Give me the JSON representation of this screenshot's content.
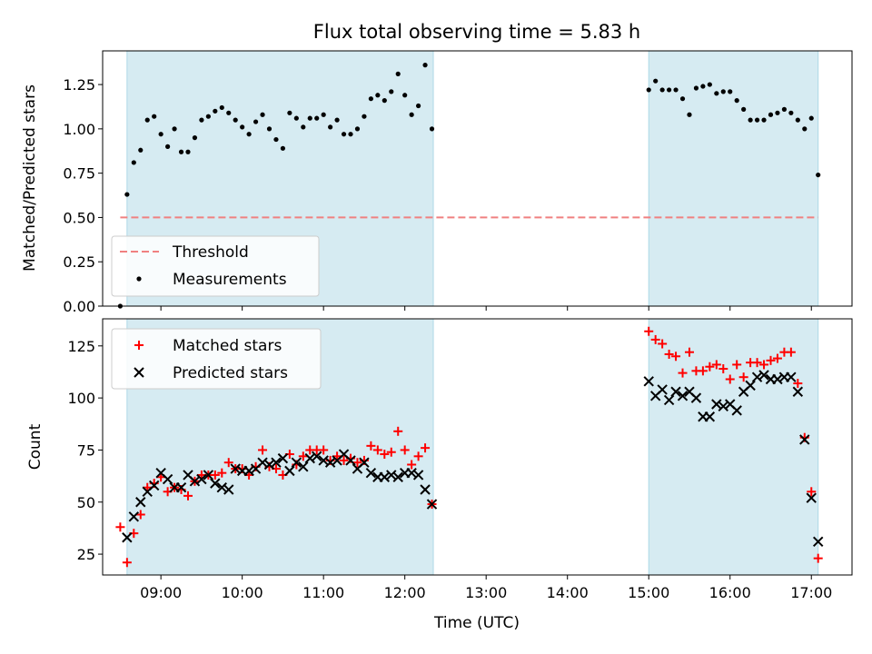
{
  "figure": {
    "title": "Flux total observing time = 5.83 h",
    "xlabel": "Time (UTC)"
  },
  "chart_data": [
    {
      "type": "scatter",
      "panel": "top",
      "ylabel": "Matched/Predicted stars",
      "xlim": [
        "08:17",
        "17:30"
      ],
      "ylim": [
        0,
        1.44
      ],
      "yticks": [
        0.0,
        0.25,
        0.5,
        0.75,
        1.0,
        1.25
      ],
      "ytick_labels": [
        "0.00",
        "0.25",
        "0.50",
        "0.75",
        "1.00",
        "1.25"
      ],
      "shaded_spans": [
        [
          "08:35",
          "12:21"
        ],
        [
          "15:00",
          "17:05"
        ]
      ],
      "threshold": {
        "name": "Threshold",
        "y": 0.5,
        "x_start": "08:30",
        "x_end": "17:05",
        "color": "#f08080",
        "style": "dashed"
      },
      "series": [
        {
          "name": "Measurements",
          "marker": "dot",
          "color": "#000000",
          "x": [
            "08:30",
            "08:35",
            "08:40",
            "08:45",
            "08:50",
            "08:55",
            "09:00",
            "09:05",
            "09:10",
            "09:15",
            "09:20",
            "09:25",
            "09:30",
            "09:35",
            "09:40",
            "09:45",
            "09:50",
            "09:55",
            "10:00",
            "10:05",
            "10:10",
            "10:15",
            "10:20",
            "10:25",
            "10:30",
            "10:35",
            "10:40",
            "10:45",
            "10:50",
            "10:55",
            "11:00",
            "11:05",
            "11:10",
            "11:15",
            "11:20",
            "11:25",
            "11:30",
            "11:35",
            "11:40",
            "11:45",
            "11:50",
            "11:55",
            "12:00",
            "12:05",
            "12:10",
            "12:15",
            "12:20",
            "15:00",
            "15:05",
            "15:10",
            "15:15",
            "15:20",
            "15:25",
            "15:30",
            "15:35",
            "15:40",
            "15:45",
            "15:50",
            "15:55",
            "16:00",
            "16:05",
            "16:10",
            "16:15",
            "16:20",
            "16:25",
            "16:30",
            "16:35",
            "16:40",
            "16:45",
            "16:50",
            "16:55",
            "17:00",
            "17:05"
          ],
          "y": [
            0.0,
            0.63,
            0.81,
            0.88,
            1.05,
            1.07,
            0.97,
            0.9,
            1.0,
            0.87,
            0.87,
            0.95,
            1.05,
            1.07,
            1.1,
            1.12,
            1.09,
            1.05,
            1.01,
            0.97,
            1.04,
            1.08,
            1.0,
            0.94,
            0.89,
            1.09,
            1.06,
            1.01,
            1.06,
            1.06,
            1.08,
            1.01,
            1.05,
            0.97,
            0.97,
            1.0,
            1.07,
            1.17,
            1.19,
            1.16,
            1.21,
            1.31,
            1.19,
            1.08,
            1.13,
            1.36,
            1.0,
            1.22,
            1.27,
            1.22,
            1.22,
            1.22,
            1.17,
            1.08,
            1.23,
            1.24,
            1.25,
            1.2,
            1.21,
            1.21,
            1.16,
            1.11,
            1.05,
            1.05,
            1.05,
            1.08,
            1.09,
            1.11,
            1.09,
            1.05,
            1.0,
            1.06,
            0.74
          ]
        }
      ],
      "legend": {
        "placement": "lower-left",
        "entries": [
          "Threshold",
          "Measurements"
        ]
      }
    },
    {
      "type": "scatter",
      "panel": "bottom",
      "ylabel": "Count",
      "xlim": [
        "08:17",
        "17:30"
      ],
      "ylim": [
        15,
        138
      ],
      "yticks": [
        25,
        50,
        75,
        100,
        125
      ],
      "ytick_labels": [
        "25",
        "50",
        "75",
        "100",
        "125"
      ],
      "xtick_labels": [
        "09:00",
        "10:00",
        "11:00",
        "12:00",
        "13:00",
        "14:00",
        "15:00",
        "16:00",
        "17:00"
      ],
      "shaded_spans": [
        [
          "08:35",
          "12:21"
        ],
        [
          "15:00",
          "17:05"
        ]
      ],
      "series": [
        {
          "name": "Matched stars",
          "marker": "plus",
          "color": "#ff0000",
          "x": [
            "08:30",
            "08:35",
            "08:40",
            "08:45",
            "08:50",
            "08:55",
            "09:00",
            "09:05",
            "09:10",
            "09:15",
            "09:20",
            "09:25",
            "09:30",
            "09:35",
            "09:40",
            "09:45",
            "09:50",
            "09:55",
            "10:00",
            "10:05",
            "10:10",
            "10:15",
            "10:20",
            "10:25",
            "10:30",
            "10:35",
            "10:40",
            "10:45",
            "10:50",
            "10:55",
            "11:00",
            "11:05",
            "11:10",
            "11:15",
            "11:20",
            "11:25",
            "11:30",
            "11:35",
            "11:40",
            "11:45",
            "11:50",
            "11:55",
            "12:00",
            "12:05",
            "12:10",
            "12:15",
            "12:20",
            "15:00",
            "15:05",
            "15:10",
            "15:15",
            "15:20",
            "15:25",
            "15:30",
            "15:35",
            "15:40",
            "15:45",
            "15:50",
            "15:55",
            "16:00",
            "16:05",
            "16:10",
            "16:15",
            "16:20",
            "16:25",
            "16:30",
            "16:35",
            "16:40",
            "16:45",
            "16:50",
            "16:55",
            "17:00",
            "17:05"
          ],
          "y": [
            38,
            21,
            35,
            44,
            57,
            59,
            62,
            55,
            57,
            56,
            53,
            60,
            63,
            63,
            63,
            64,
            69,
            66,
            66,
            63,
            67,
            75,
            67,
            66,
            63,
            73,
            68,
            72,
            75,
            75,
            75,
            70,
            72,
            70,
            71,
            69,
            70,
            77,
            75,
            73,
            74,
            84,
            75,
            68,
            72,
            76,
            49,
            132,
            128,
            126,
            121,
            120,
            112,
            122,
            113,
            113,
            115,
            116,
            114,
            109,
            116,
            110,
            117,
            117,
            116,
            118,
            119,
            122,
            122,
            107,
            81,
            55,
            23
          ]
        },
        {
          "name": "Predicted stars",
          "marker": "x",
          "color": "#000000",
          "x": [
            "08:30",
            "08:35",
            "08:40",
            "08:45",
            "08:50",
            "08:55",
            "09:00",
            "09:05",
            "09:10",
            "09:15",
            "09:20",
            "09:25",
            "09:30",
            "09:35",
            "09:40",
            "09:45",
            "09:50",
            "09:55",
            "10:00",
            "10:05",
            "10:10",
            "10:15",
            "10:20",
            "10:25",
            "10:30",
            "10:35",
            "10:40",
            "10:45",
            "10:50",
            "10:55",
            "11:00",
            "11:05",
            "11:10",
            "11:15",
            "11:20",
            "11:25",
            "11:30",
            "11:35",
            "11:40",
            "11:45",
            "11:50",
            "11:55",
            "12:00",
            "12:05",
            "12:10",
            "12:15",
            "12:20",
            "15:00",
            "15:05",
            "15:10",
            "15:15",
            "15:20",
            "15:25",
            "15:30",
            "15:35",
            "15:40",
            "15:45",
            "15:50",
            "15:55",
            "16:00",
            "16:05",
            "16:10",
            "16:15",
            "16:20",
            "16:25",
            "16:30",
            "16:35",
            "16:40",
            "16:45",
            "16:50",
            "16:55",
            "17:00",
            "17:05"
          ],
          "y": [
            null,
            33,
            43,
            50,
            55,
            58,
            64,
            61,
            57,
            57,
            63,
            60,
            61,
            63,
            59,
            57,
            56,
            66,
            65,
            65,
            66,
            69,
            68,
            69,
            71,
            65,
            69,
            67,
            71,
            72,
            70,
            69,
            70,
            73,
            70,
            66,
            69,
            64,
            62,
            62,
            63,
            62,
            64,
            64,
            63,
            56,
            49,
            108,
            101,
            104,
            99,
            103,
            101,
            103,
            100,
            91,
            91,
            97,
            96,
            97,
            94,
            103,
            106,
            110,
            111,
            109,
            109,
            110,
            110,
            103,
            80,
            52,
            31
          ]
        }
      ],
      "legend": {
        "placement": "upper-left",
        "entries": [
          "Matched stars",
          "Predicted stars"
        ]
      }
    }
  ]
}
